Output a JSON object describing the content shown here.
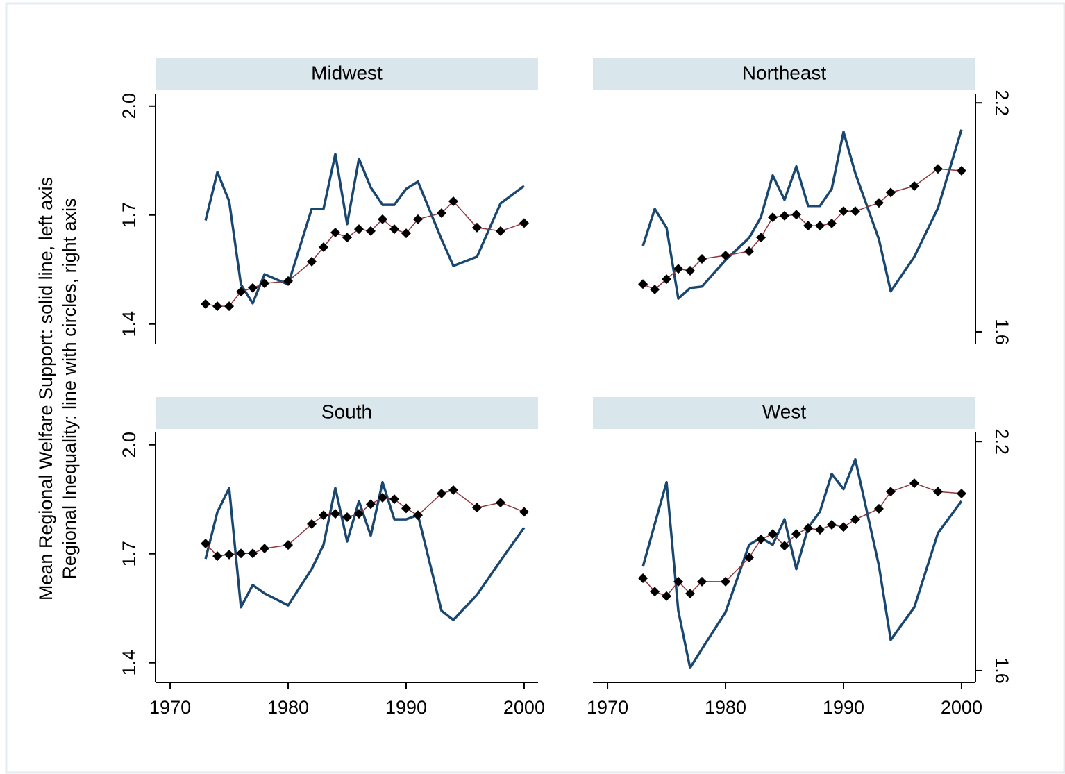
{
  "ylabel": [
    "Mean Regional Welfare Support: solid line, left axis",
    "Regional Inequality: line with circles, right axis"
  ],
  "chart_data": [
    {
      "type": "line",
      "title": "Midwest",
      "x": [
        1973,
        1974,
        1975,
        1976,
        1977,
        1978,
        1980,
        1982,
        1983,
        1984,
        1985,
        1986,
        1987,
        1988,
        1989,
        1990,
        1991,
        1993,
        1994,
        1996,
        1998,
        2000
      ],
      "series": [
        {
          "color": "#1a476f",
          "values": [
            1.685,
            1.818,
            1.738,
            1.509,
            1.457,
            1.537,
            1.509,
            1.717,
            1.717,
            1.868,
            1.675,
            1.855,
            1.776,
            1.728,
            1.728,
            1.772,
            1.792,
            1.633,
            1.56,
            1.585,
            1.732,
            1.78
          ]
        },
        {
          "color": "#90353b",
          "marker_color": "#000000",
          "axis": "y2",
          "values": [
            1.673,
            1.667,
            1.667,
            1.705,
            1.715,
            1.727,
            1.733,
            1.784,
            1.822,
            1.86,
            1.847,
            1.869,
            1.864,
            1.895,
            1.869,
            1.858,
            1.895,
            1.911,
            1.942,
            1.873,
            1.864,
            1.885
          ]
        }
      ],
      "xlim": [
        1968.76,
        2001.18
      ],
      "ylim": [
        1.346,
        2.034
      ],
      "y2lim": [
        1.569,
        2.224
      ],
      "yticks": [
        {
          "value": 2.0,
          "label": "2.0"
        },
        1.7,
        1.4
      ]
    },
    {
      "type": "line",
      "title": "Northeast",
      "x": [
        1973,
        1974,
        1975,
        1976,
        1977,
        1978,
        1980,
        1982,
        1983,
        1984,
        1985,
        1986,
        1987,
        1988,
        1989,
        1990,
        1991,
        1993,
        1994,
        1996,
        1998,
        2000
      ],
      "series": [
        {
          "color": "#1a476f",
          "values": [
            1.615,
            1.717,
            1.665,
            1.47,
            1.499,
            1.503,
            1.576,
            1.637,
            1.694,
            1.809,
            1.742,
            1.834,
            1.725,
            1.725,
            1.772,
            1.929,
            1.815,
            1.633,
            1.49,
            1.585,
            1.719,
            1.935
          ]
        },
        {
          "color": "#90353b",
          "marker_color": "#000000",
          "axis": "y2",
          "values": [
            1.725,
            1.711,
            1.738,
            1.765,
            1.76,
            1.791,
            1.8,
            1.811,
            1.847,
            1.9,
            1.904,
            1.907,
            1.878,
            1.878,
            1.884,
            1.916,
            1.916,
            1.938,
            1.965,
            1.982,
            2.027,
            2.022
          ]
        }
      ],
      "xlim": [
        1968.76,
        2001.18
      ],
      "ylim": [
        1.346,
        2.034
      ],
      "y2lim": [
        1.569,
        2.224
      ],
      "y2ticks": [
        2.2,
        1.6
      ]
    },
    {
      "type": "line",
      "title": "South",
      "x": [
        1973,
        1974,
        1975,
        1976,
        1977,
        1978,
        1980,
        1982,
        1983,
        1984,
        1985,
        1986,
        1987,
        1988,
        1989,
        1990,
        1991,
        1993,
        1994,
        1996,
        1998,
        2000
      ],
      "series": [
        {
          "color": "#1a476f",
          "values": [
            1.686,
            1.815,
            1.881,
            1.553,
            1.614,
            1.591,
            1.558,
            1.658,
            1.725,
            1.881,
            1.734,
            1.845,
            1.75,
            1.897,
            1.795,
            1.795,
            1.807,
            1.543,
            1.518,
            1.587,
            1.681,
            1.772
          ]
        },
        {
          "color": "#90353b",
          "marker_color": "#000000",
          "axis": "y2",
          "values": [
            1.933,
            1.9,
            1.904,
            1.907,
            1.907,
            1.92,
            1.929,
            1.984,
            2.007,
            2.011,
            2.002,
            2.011,
            2.036,
            2.053,
            2.049,
            2.025,
            2.007,
            2.064,
            2.073,
            2.027,
            2.04,
            2.016
          ]
        }
      ],
      "xlim": [
        1968.76,
        2001.18
      ],
      "ylim": [
        1.346,
        2.034
      ],
      "y2lim": [
        1.569,
        2.224
      ],
      "yticks": [
        {
          "value": 2.0,
          "label": "2.0"
        },
        1.7,
        1.4
      ],
      "xticks": [
        1970,
        1980,
        1990,
        2000
      ]
    },
    {
      "type": "line",
      "title": "West",
      "x": [
        1973,
        1974,
        1975,
        1976,
        1977,
        1978,
        1980,
        1982,
        1983,
        1984,
        1985,
        1986,
        1987,
        1988,
        1989,
        1990,
        1991,
        1993,
        1994,
        1996,
        1998,
        2000
      ],
      "series": [
        {
          "color": "#1a476f",
          "values": [
            1.665,
            1.782,
            1.897,
            1.543,
            1.386,
            1.438,
            1.539,
            1.725,
            1.744,
            1.725,
            1.795,
            1.658,
            1.772,
            1.816,
            1.92,
            1.878,
            1.96,
            1.667,
            1.463,
            1.553,
            1.757,
            1.845
          ]
        },
        {
          "color": "#90353b",
          "marker_color": "#000000",
          "axis": "y2",
          "values": [
            1.842,
            1.807,
            1.795,
            1.833,
            1.802,
            1.833,
            1.833,
            1.896,
            1.944,
            1.958,
            1.927,
            1.958,
            1.973,
            1.969,
            1.982,
            1.976,
            1.996,
            2.024,
            2.069,
            2.091,
            2.069,
            2.064
          ]
        }
      ],
      "xlim": [
        1968.76,
        2001.18
      ],
      "ylim": [
        1.346,
        2.034
      ],
      "y2lim": [
        1.569,
        2.224
      ],
      "y2ticks": [
        2.2,
        1.6
      ],
      "xticks": [
        1970,
        1980,
        1990,
        2000
      ]
    }
  ]
}
